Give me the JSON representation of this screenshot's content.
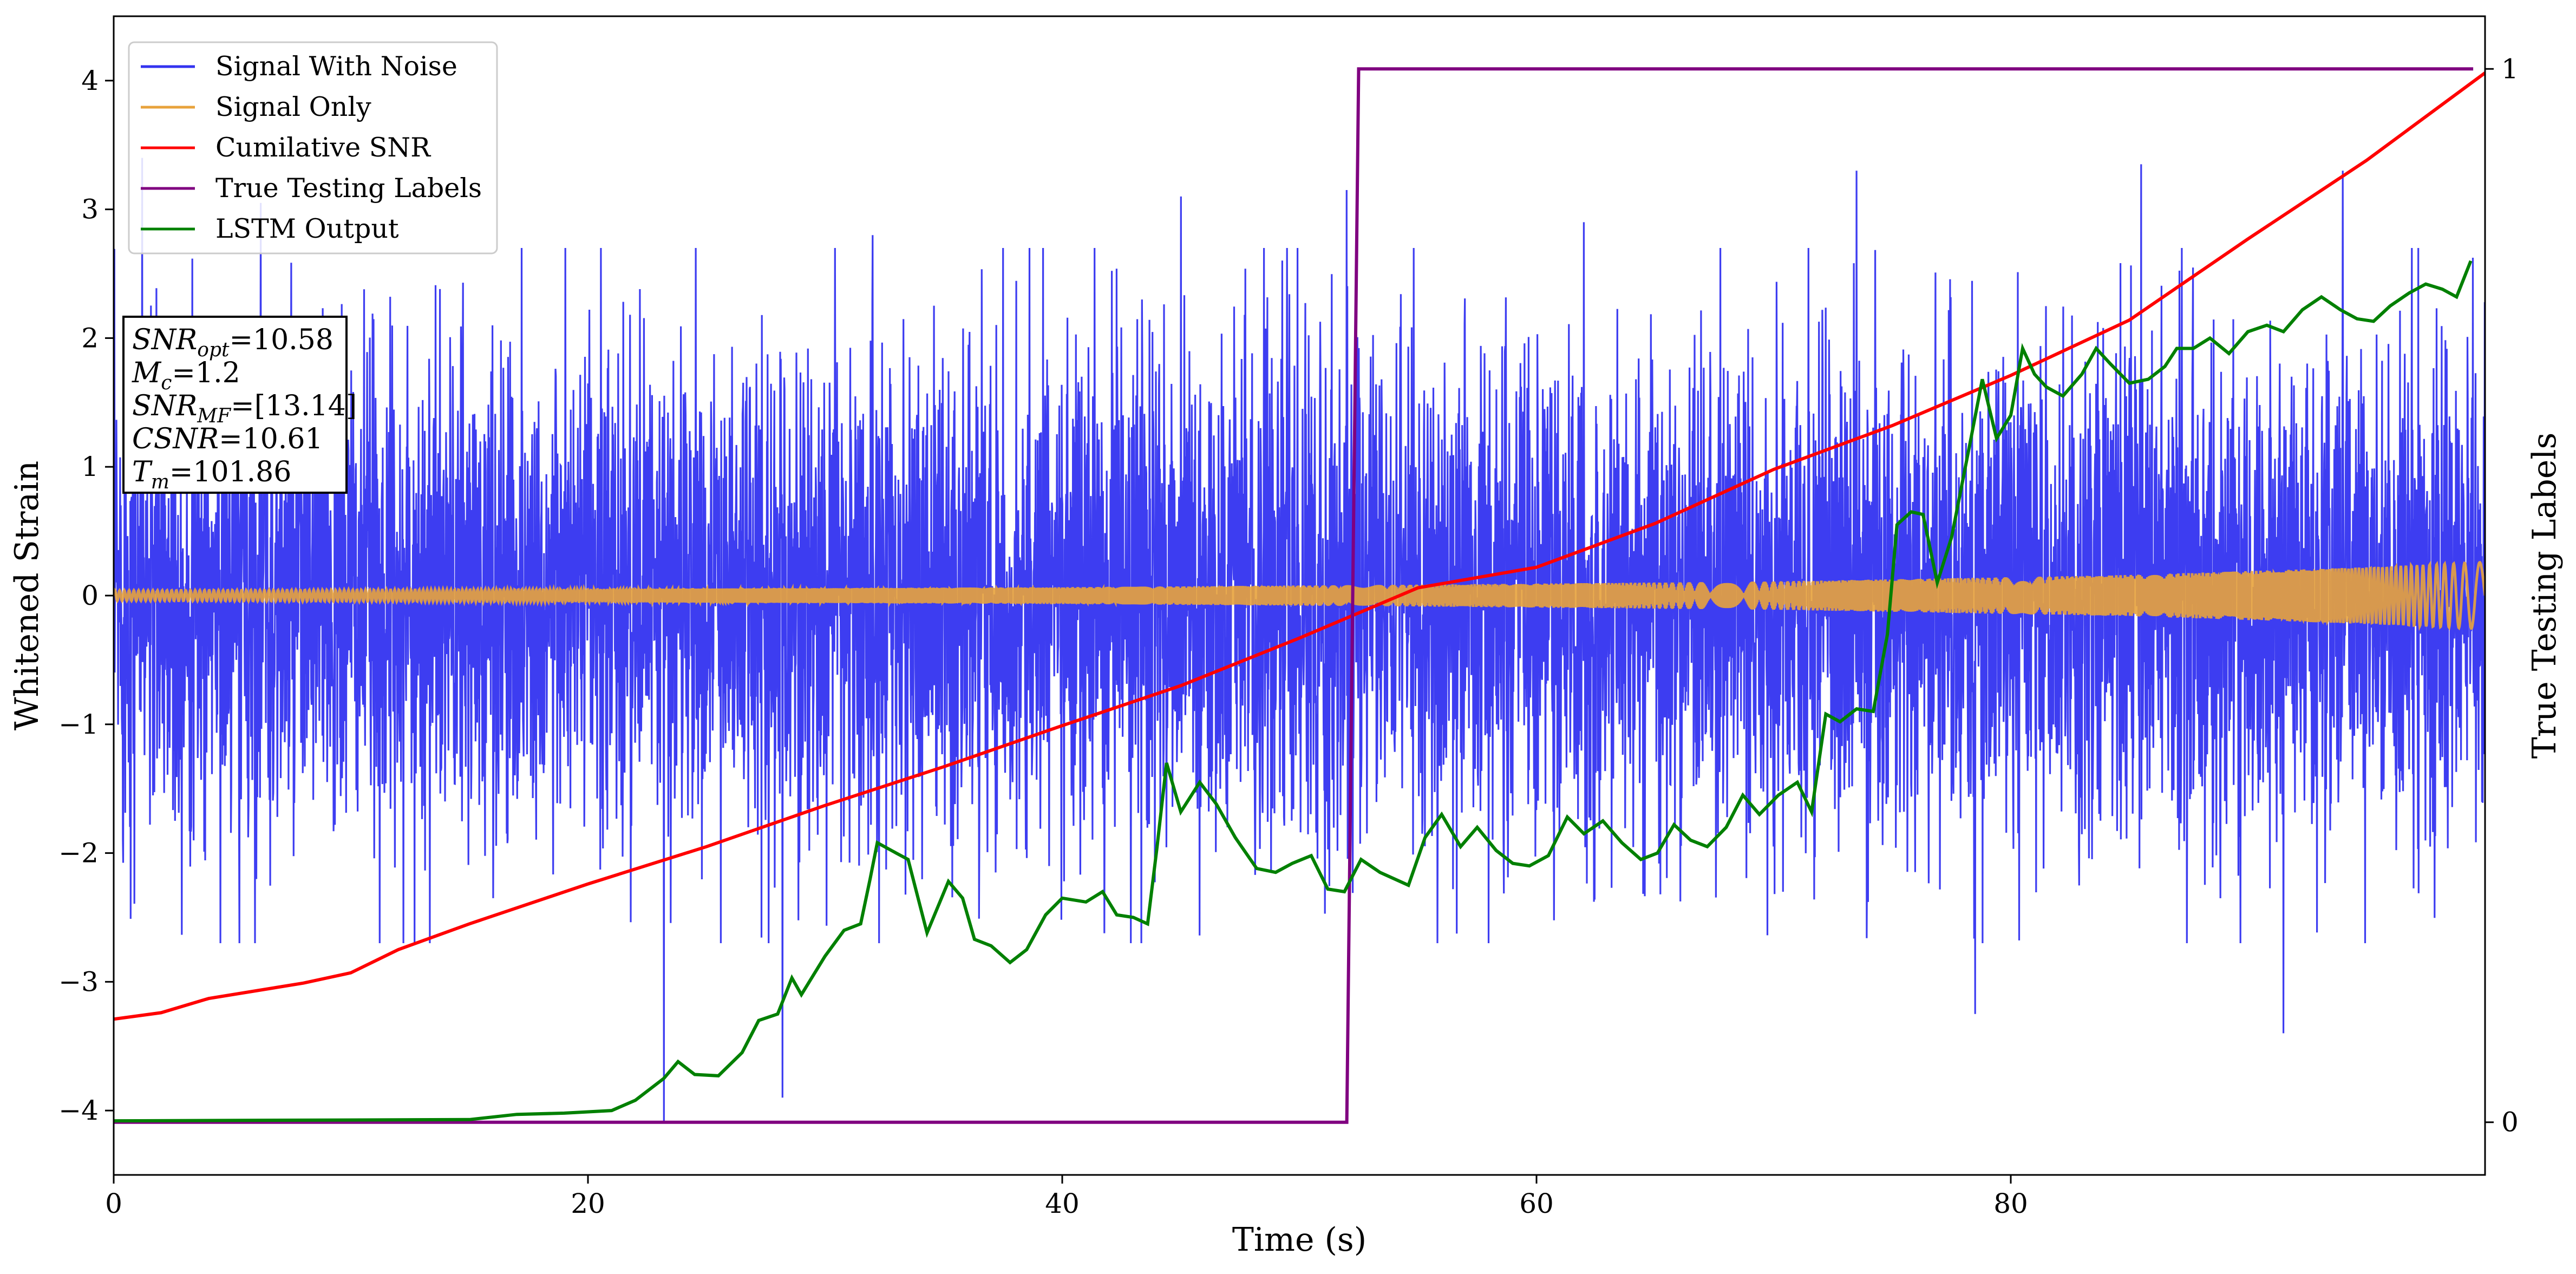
{
  "chart_data": {
    "type": "line",
    "xlabel": "Time (s)",
    "ylabel": "Whitened Strain",
    "y2label": "True Testing Labels",
    "xlim": [
      0,
      100
    ],
    "ylim": [
      -4.5,
      4.5
    ],
    "y2lim": [
      -0.05,
      1.05
    ],
    "xticks": [
      "0",
      "20",
      "40",
      "60",
      "80"
    ],
    "yticks": [
      "−4",
      "−3",
      "−2",
      "−1",
      "0",
      "1",
      "2",
      "3",
      "4"
    ],
    "y2ticks": [
      "0",
      "1"
    ],
    "legend_position": "top-left",
    "grid": false,
    "series": [
      {
        "name": "Signal With Noise",
        "axis": "left",
        "color": "#3333f0",
        "description_x_range": [
          0,
          100
        ],
        "envelope_typical": [
          -1.9,
          1.9
        ],
        "peaks": [
          {
            "x": 1.2,
            "y": 3.4
          },
          {
            "x": 6.2,
            "y": 3.05
          },
          {
            "x": 23.2,
            "y": -4.1
          },
          {
            "x": 28.2,
            "y": -3.9
          },
          {
            "x": 32,
            "y": 2.8
          },
          {
            "x": 37.5,
            "y": 2.7
          },
          {
            "x": 45,
            "y": 3.1
          },
          {
            "x": 52,
            "y": 3.15
          },
          {
            "x": 62,
            "y": 2.9
          },
          {
            "x": 73.5,
            "y": 3.3
          },
          {
            "x": 78.5,
            "y": -3.25
          },
          {
            "x": 85.5,
            "y": 3.35
          },
          {
            "x": 91.5,
            "y": -3.4
          },
          {
            "x": 94,
            "y": 3.3
          }
        ]
      },
      {
        "name": "Signal Only",
        "axis": "left",
        "color": "#e8a33c",
        "amplitude_envelope": [
          {
            "x": 0,
            "a": 0.04
          },
          {
            "x": 20,
            "a": 0.05
          },
          {
            "x": 40,
            "a": 0.065
          },
          {
            "x": 55,
            "a": 0.085
          },
          {
            "x": 70,
            "a": 0.11
          },
          {
            "x": 85,
            "a": 0.16
          },
          {
            "x": 95,
            "a": 0.22
          },
          {
            "x": 100,
            "a": 0.26
          }
        ]
      },
      {
        "name": "Cumilative SNR",
        "axis": "left",
        "color": "#ff0000",
        "points": [
          {
            "x": 0,
            "y": -3.29
          },
          {
            "x": 2,
            "y": -3.24
          },
          {
            "x": 4,
            "y": -3.13
          },
          {
            "x": 8,
            "y": -3.01
          },
          {
            "x": 10,
            "y": -2.93
          },
          {
            "x": 12,
            "y": -2.75
          },
          {
            "x": 15,
            "y": -2.55
          },
          {
            "x": 20,
            "y": -2.24
          },
          {
            "x": 25,
            "y": -1.95
          },
          {
            "x": 30,
            "y": -1.63
          },
          {
            "x": 35,
            "y": -1.33
          },
          {
            "x": 40,
            "y": -1.01
          },
          {
            "x": 45,
            "y": -0.7
          },
          {
            "x": 50,
            "y": -0.33
          },
          {
            "x": 55,
            "y": 0.06
          },
          {
            "x": 60,
            "y": 0.22
          },
          {
            "x": 65,
            "y": 0.56
          },
          {
            "x": 70,
            "y": 0.98
          },
          {
            "x": 75,
            "y": 1.32
          },
          {
            "x": 80,
            "y": 1.71
          },
          {
            "x": 85,
            "y": 2.14
          },
          {
            "x": 90,
            "y": 2.77
          },
          {
            "x": 95,
            "y": 3.38
          },
          {
            "x": 100,
            "y": 4.06
          }
        ]
      },
      {
        "name": "True Testing Labels",
        "axis": "right",
        "color": "#800080",
        "points": [
          {
            "x": 0,
            "y": 0
          },
          {
            "x": 52,
            "y": 0
          },
          {
            "x": 52.5,
            "y": 1
          },
          {
            "x": 99.5,
            "y": 1
          }
        ]
      },
      {
        "name": "LSTM Output",
        "axis": "left",
        "color": "#008000",
        "points": [
          {
            "x": 0,
            "y": -4.08
          },
          {
            "x": 15,
            "y": -4.07
          },
          {
            "x": 17,
            "y": -4.03
          },
          {
            "x": 19,
            "y": -4.02
          },
          {
            "x": 21,
            "y": -4.0
          },
          {
            "x": 22,
            "y": -3.92
          },
          {
            "x": 23.2,
            "y": -3.75
          },
          {
            "x": 23.8,
            "y": -3.62
          },
          {
            "x": 24.5,
            "y": -3.72
          },
          {
            "x": 25.5,
            "y": -3.73
          },
          {
            "x": 26.5,
            "y": -3.55
          },
          {
            "x": 27.2,
            "y": -3.3
          },
          {
            "x": 28,
            "y": -3.25
          },
          {
            "x": 28.6,
            "y": -2.97
          },
          {
            "x": 29,
            "y": -3.1
          },
          {
            "x": 30,
            "y": -2.8
          },
          {
            "x": 30.8,
            "y": -2.6
          },
          {
            "x": 31.5,
            "y": -2.55
          },
          {
            "x": 31.9,
            "y": -2.2
          },
          {
            "x": 32.2,
            "y": -1.92
          },
          {
            "x": 33,
            "y": -2.0
          },
          {
            "x": 33.5,
            "y": -2.05
          },
          {
            "x": 34.3,
            "y": -2.62
          },
          {
            "x": 35.2,
            "y": -2.22
          },
          {
            "x": 35.8,
            "y": -2.35
          },
          {
            "x": 36.3,
            "y": -2.67
          },
          {
            "x": 37,
            "y": -2.72
          },
          {
            "x": 37.8,
            "y": -2.85
          },
          {
            "x": 38.5,
            "y": -2.75
          },
          {
            "x": 39.3,
            "y": -2.48
          },
          {
            "x": 40,
            "y": -2.35
          },
          {
            "x": 41,
            "y": -2.38
          },
          {
            "x": 41.7,
            "y": -2.3
          },
          {
            "x": 42.3,
            "y": -2.48
          },
          {
            "x": 43,
            "y": -2.5
          },
          {
            "x": 43.6,
            "y": -2.55
          },
          {
            "x": 44,
            "y": -1.95
          },
          {
            "x": 44.4,
            "y": -1.3
          },
          {
            "x": 45,
            "y": -1.68
          },
          {
            "x": 45.8,
            "y": -1.45
          },
          {
            "x": 46.5,
            "y": -1.62
          },
          {
            "x": 47.3,
            "y": -1.88
          },
          {
            "x": 48.2,
            "y": -2.12
          },
          {
            "x": 49,
            "y": -2.15
          },
          {
            "x": 49.7,
            "y": -2.08
          },
          {
            "x": 50.5,
            "y": -2.02
          },
          {
            "x": 51.2,
            "y": -2.28
          },
          {
            "x": 51.9,
            "y": -2.3
          },
          {
            "x": 52.6,
            "y": -2.05
          },
          {
            "x": 53.4,
            "y": -2.15
          },
          {
            "x": 54,
            "y": -2.2
          },
          {
            "x": 54.6,
            "y": -2.25
          },
          {
            "x": 55.3,
            "y": -1.88
          },
          {
            "x": 56,
            "y": -1.7
          },
          {
            "x": 56.8,
            "y": -1.95
          },
          {
            "x": 57.5,
            "y": -1.8
          },
          {
            "x": 58.3,
            "y": -1.98
          },
          {
            "x": 59,
            "y": -2.08
          },
          {
            "x": 59.7,
            "y": -2.1
          },
          {
            "x": 60.5,
            "y": -2.02
          },
          {
            "x": 61.3,
            "y": -1.72
          },
          {
            "x": 62,
            "y": -1.85
          },
          {
            "x": 62.8,
            "y": -1.75
          },
          {
            "x": 63.6,
            "y": -1.92
          },
          {
            "x": 64.4,
            "y": -2.05
          },
          {
            "x": 65.1,
            "y": -2.0
          },
          {
            "x": 65.8,
            "y": -1.78
          },
          {
            "x": 66.5,
            "y": -1.9
          },
          {
            "x": 67.2,
            "y": -1.95
          },
          {
            "x": 68,
            "y": -1.8
          },
          {
            "x": 68.7,
            "y": -1.55
          },
          {
            "x": 69.4,
            "y": -1.7
          },
          {
            "x": 70.2,
            "y": -1.55
          },
          {
            "x": 71,
            "y": -1.45
          },
          {
            "x": 71.6,
            "y": -1.68
          },
          {
            "x": 72.2,
            "y": -0.92
          },
          {
            "x": 72.8,
            "y": -0.98
          },
          {
            "x": 73.5,
            "y": -0.88
          },
          {
            "x": 74.2,
            "y": -0.9
          },
          {
            "x": 74.8,
            "y": -0.3
          },
          {
            "x": 75.2,
            "y": 0.55
          },
          {
            "x": 75.8,
            "y": 0.65
          },
          {
            "x": 76.3,
            "y": 0.63
          },
          {
            "x": 76.9,
            "y": 0.1
          },
          {
            "x": 77.5,
            "y": 0.45
          },
          {
            "x": 78.3,
            "y": 1.2
          },
          {
            "x": 78.8,
            "y": 1.68
          },
          {
            "x": 79.4,
            "y": 1.22
          },
          {
            "x": 80,
            "y": 1.4
          },
          {
            "x": 80.5,
            "y": 1.92
          },
          {
            "x": 81,
            "y": 1.72
          },
          {
            "x": 81.5,
            "y": 1.62
          },
          {
            "x": 82.2,
            "y": 1.55
          },
          {
            "x": 83,
            "y": 1.72
          },
          {
            "x": 83.6,
            "y": 1.92
          },
          {
            "x": 84.2,
            "y": 1.8
          },
          {
            "x": 85,
            "y": 1.65
          },
          {
            "x": 85.8,
            "y": 1.68
          },
          {
            "x": 86.5,
            "y": 1.78
          },
          {
            "x": 87,
            "y": 1.92
          },
          {
            "x": 87.7,
            "y": 1.92
          },
          {
            "x": 88.4,
            "y": 2.0
          },
          {
            "x": 89.2,
            "y": 1.88
          },
          {
            "x": 90,
            "y": 2.05
          },
          {
            "x": 90.8,
            "y": 2.1
          },
          {
            "x": 91.5,
            "y": 2.05
          },
          {
            "x": 92.3,
            "y": 2.22
          },
          {
            "x": 93.1,
            "y": 2.32
          },
          {
            "x": 93.9,
            "y": 2.22
          },
          {
            "x": 94.6,
            "y": 2.15
          },
          {
            "x": 95.3,
            "y": 2.13
          },
          {
            "x": 96,
            "y": 2.25
          },
          {
            "x": 96.8,
            "y": 2.35
          },
          {
            "x": 97.5,
            "y": 2.42
          },
          {
            "x": 98.2,
            "y": 2.38
          },
          {
            "x": 98.8,
            "y": 2.32
          },
          {
            "x": 99.4,
            "y": 2.6
          }
        ]
      }
    ],
    "legend": [
      {
        "label": "Signal With Noise",
        "color": "#3333f0"
      },
      {
        "label": "Signal Only",
        "color": "#e8a33c"
      },
      {
        "label": "Cumilative SNR",
        "color": "#ff0000"
      },
      {
        "label": "True Testing Labels",
        "color": "#800080"
      },
      {
        "label": "LSTM Output",
        "color": "#008000"
      }
    ],
    "annotation_box": {
      "lines": [
        {
          "main": "SNR",
          "sub": "opt",
          "rest": "=10.58"
        },
        {
          "main": "M",
          "sub": "c",
          "rest": "=1.2"
        },
        {
          "main": "SNR",
          "sub": "MF",
          "rest": "=[13.14]"
        },
        {
          "main": "CSNR",
          "sub": "",
          "rest": "=10.61"
        },
        {
          "main": "T",
          "sub": "m",
          "rest": "=101.86"
        }
      ]
    }
  }
}
